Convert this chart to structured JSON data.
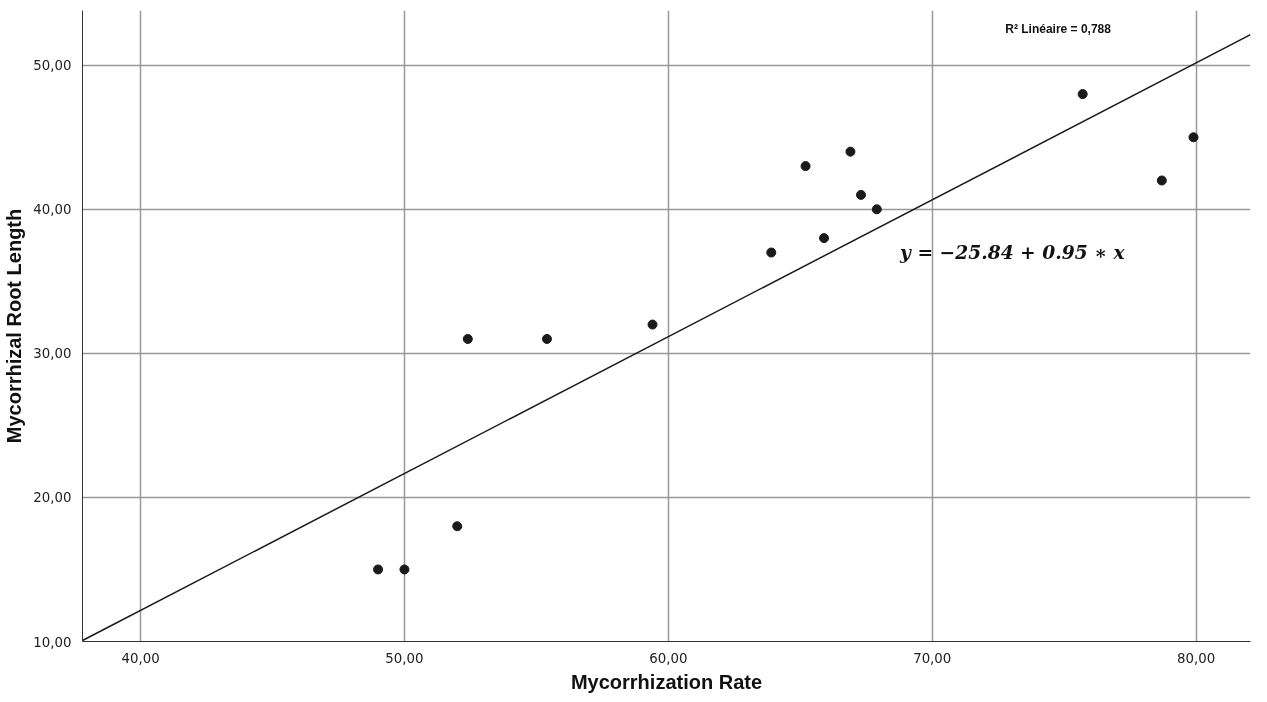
{
  "chart_data": {
    "type": "scatter",
    "xlabel": "Mycorrhization Rate",
    "ylabel": "Mycorrhizal Root Length",
    "x": [
      49,
      50,
      52,
      52.4,
      55.4,
      59.4,
      63.9,
      65.2,
      65.9,
      66.9,
      67.3,
      67.9,
      75.7,
      78.7,
      79.9
    ],
    "series": [
      {
        "color": "#1a1a1a",
        "marker": "circle",
        "values": [
          15,
          15,
          18,
          31,
          31,
          32,
          37,
          43,
          38,
          44,
          41,
          40,
          48,
          42,
          45
        ]
      },
      {
        "type": "line",
        "color": "#1a1a1a",
        "line_style": "solid",
        "x": [
          37.8,
          82.06
        ],
        "values": [
          10.07,
          52.12
        ]
      }
    ],
    "xlim": [
      37.8,
      82.06
    ],
    "ylim": [
      10,
      53.8
    ],
    "xticks": [
      {
        "value": 40,
        "label": "40,00"
      },
      {
        "value": 50,
        "label": "50,00"
      },
      {
        "value": 60,
        "label": "60,00"
      },
      {
        "value": 70,
        "label": "70,00"
      },
      {
        "value": 80,
        "label": "80,00"
      }
    ],
    "yticks": [
      {
        "value": 10,
        "label": "10,00"
      },
      {
        "value": 20,
        "label": "20,00"
      },
      {
        "value": 30,
        "label": "30,00"
      },
      {
        "value": 40,
        "label": "40,00"
      },
      {
        "value": 50,
        "label": "50,00"
      }
    ],
    "grid": true,
    "annotations": [
      "R² Linéaire = 0,788",
      "y = −25.84 + 0.95 ∗ x"
    ]
  }
}
